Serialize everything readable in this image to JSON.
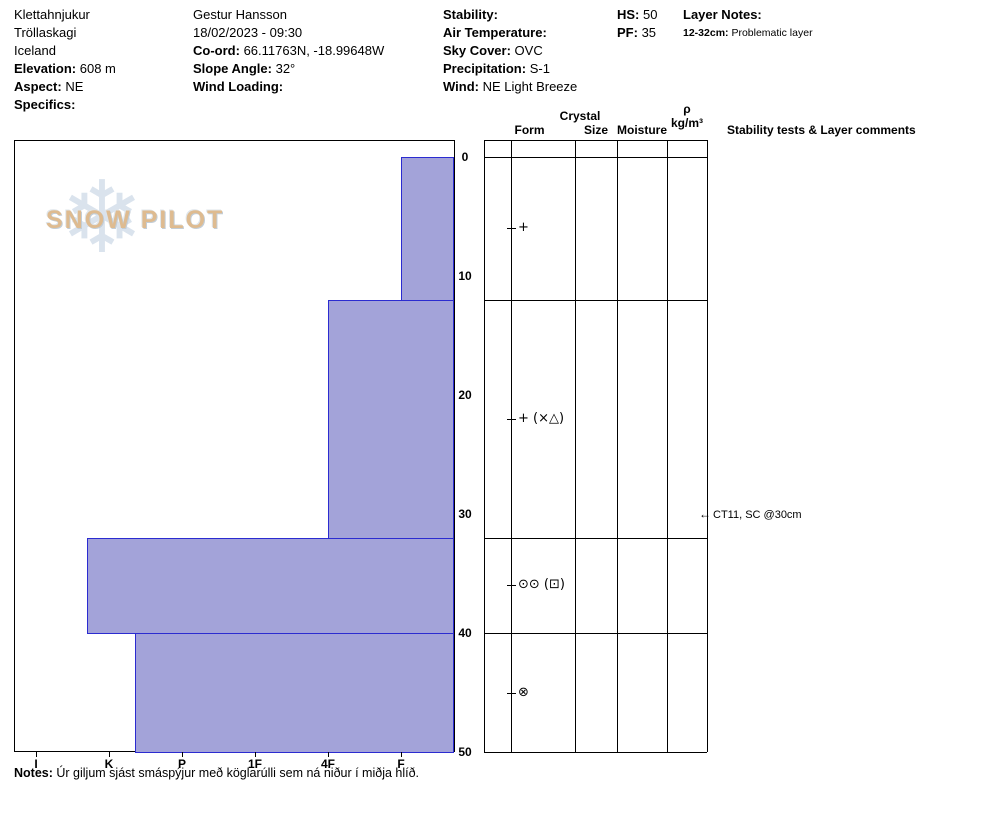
{
  "header": {
    "location": {
      "line1": "Klettahnjukur",
      "line2": "Tröllaskagi",
      "line3": "Iceland"
    },
    "elevation": {
      "label": "Elevation:",
      "value": "608 m"
    },
    "aspect": {
      "label": "Aspect:",
      "value": "NE"
    },
    "specifics_label": "Specifics:",
    "observer": "Gestur Hansson",
    "datetime": "18/02/2023 - 09:30",
    "coord": {
      "label": "Co-ord:",
      "value": "66.11763N, -18.99648W"
    },
    "slope_angle": {
      "label": "Slope Angle:",
      "value": "32°"
    },
    "wind_loading_label": "Wind Loading:",
    "stability_label": "Stability:",
    "air_temperature_label": "Air Temperature:",
    "sky_cover": {
      "label": "Sky Cover:",
      "value": "OVC"
    },
    "precipitation": {
      "label": "Precipitation:",
      "value": "S-1"
    },
    "wind": {
      "label": "Wind:",
      "value": "NE Light Breeze"
    },
    "hs": {
      "label": "HS:",
      "value": "50"
    },
    "pf": {
      "label": "PF:",
      "value": "35"
    },
    "layer_notes": {
      "label": "Layer Notes:",
      "items": [
        {
          "range": "12-32cm:",
          "text": "Problematic layer"
        }
      ]
    }
  },
  "watermark": {
    "text": "SNOW PILOT",
    "icon": "snowflake-icon",
    "flake_color": "#d6e0ec",
    "text_color": "#debb90"
  },
  "chart_data": {
    "type": "bar",
    "description": "Snowpit hand-hardness profile: horizontal bars per layer extend leftward from F (softest) toward I (hardest); depth in cm increases downward from 0 to 50",
    "hardness_scale": [
      "I",
      "K",
      "P",
      "1F",
      "4F",
      "F"
    ],
    "depth_ticks_cm": [
      0,
      10,
      20,
      30,
      40,
      50
    ],
    "depth_range_cm": [
      0,
      50
    ],
    "layers": [
      {
        "top_cm": 0,
        "bottom_cm": 12,
        "hardness": "F",
        "hardness_index": 5,
        "grain_form": "+"
      },
      {
        "top_cm": 12,
        "bottom_cm": 32,
        "hardness": "4F",
        "hardness_index": 4,
        "grain_form": "+ (×△)"
      },
      {
        "top_cm": 32,
        "bottom_cm": 40,
        "hardness": "K+",
        "hardness_index": 0.7,
        "grain_form": "⊙⊙ (⊡)"
      },
      {
        "top_cm": 40,
        "bottom_cm": 50,
        "hardness": "K-",
        "hardness_index": 1.35,
        "grain_form": "⊗"
      }
    ],
    "colors": {
      "bar_fill": "#a3a3d9",
      "bar_stroke": "#2b2bd0"
    }
  },
  "table": {
    "headers": {
      "crystal_group": "Crystal",
      "form": "Form",
      "size": "Size",
      "moisture": "Moisture",
      "density_symbol": "ρ",
      "density_unit": "kg/m³",
      "stability": "Stability tests & Layer comments"
    },
    "stability_tests": [
      {
        "text": "CT11, SC @30cm",
        "depth_cm": 30
      }
    ]
  },
  "notes": {
    "label": "Notes:",
    "text": "Úr giljum sjást smáspýjur með köglarúlli sem ná niður í miðja hlíð."
  }
}
